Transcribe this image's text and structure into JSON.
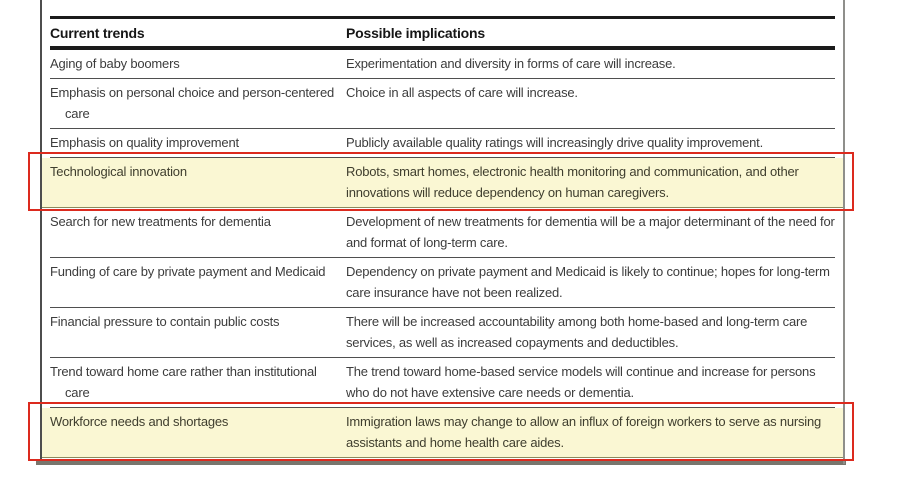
{
  "annotations": {
    "highlight_color": "#FAF7D3",
    "box_border_color": "#DC2A1E"
  },
  "table": {
    "columns": [
      "Current trends",
      "Possible implications"
    ],
    "rows": [
      {
        "trend": "Aging of baby boomers",
        "implication": "Experimentation and diversity in forms of care will increase.",
        "highlighted": false
      },
      {
        "trend": "Emphasis on personal choice and person-centered care",
        "implication": "Choice in all aspects of care will increase.",
        "highlighted": false
      },
      {
        "trend": "Emphasis on quality improvement",
        "implication": "Publicly available quality ratings will increasingly drive quality improvement.",
        "highlighted": false
      },
      {
        "trend": "Technological innovation",
        "implication": "Robots, smart homes, electronic health monitoring and communication, and other innovations will reduce dependency on human caregivers.",
        "highlighted": true
      },
      {
        "trend": "Search for new treatments for dementia",
        "implication": "Development of new treatments for dementia will be a major determinant of the need for and format of long-term care.",
        "highlighted": false
      },
      {
        "trend": "Funding of care by private payment and Medicaid",
        "implication": "Dependency on private payment and Medicaid is likely to continue; hopes for long-term care insurance have not been realized.",
        "highlighted": false
      },
      {
        "trend": "Financial pressure to contain public costs",
        "implication": "There will be increased accountability among both home-based and long-term care services, as well as increased copayments and deductibles.",
        "highlighted": false
      },
      {
        "trend": "Trend toward home care rather than institutional care",
        "implication": "The trend toward home-based service models will continue and increase for persons who do not have extensive care needs or dementia.",
        "highlighted": false
      },
      {
        "trend": "Workforce needs and shortages",
        "implication": "Immigration laws may change to allow an influx of foreign workers to serve as nursing assistants and home health care aides.",
        "highlighted": true
      }
    ]
  }
}
